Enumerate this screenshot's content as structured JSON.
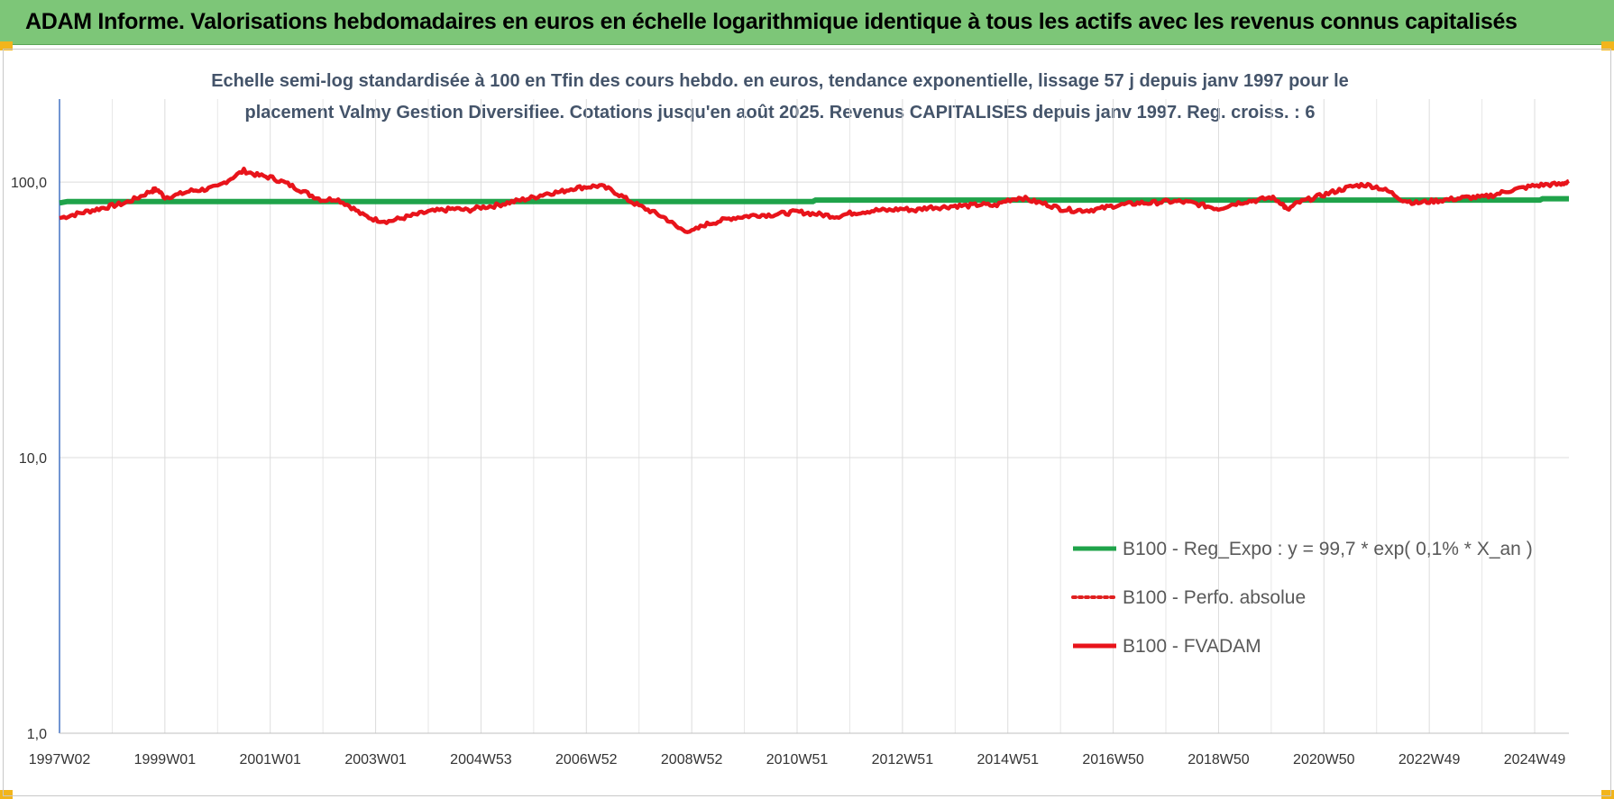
{
  "banner": {
    "title": "ADAM Informe. Valorisations hebdomadaires en euros en échelle logarithmique identique à tous les actifs avec les revenus connus capitalisés"
  },
  "chart_data": {
    "type": "line",
    "title_lines": [
      "Echelle semi-log standardisée à 100 en Tfin des cours hebdo. en euros, tendance exponentielle, lissage 57 j depuis janv 1997 pour le",
      "placement Valmy Gestion Diversifiee. Cotations jusqu'en août 2025. Revenus CAPITALISES depuis janv 1997. Reg. croiss. : 6"
    ],
    "y_scale": "log",
    "ylim": [
      1,
      200
    ],
    "y_ticks": [
      {
        "value": 1,
        "label": "1,0"
      },
      {
        "value": 10,
        "label": "10,0"
      },
      {
        "value": 100,
        "label": "100,0"
      }
    ],
    "xlim": [
      1997.0,
      2025.65
    ],
    "x_ticks": [
      {
        "value": 1997.0,
        "label": "1997W02"
      },
      {
        "value": 1999.0,
        "label": "1999W01"
      },
      {
        "value": 2001.0,
        "label": "2001W01"
      },
      {
        "value": 2003.0,
        "label": "2003W01"
      },
      {
        "value": 2005.0,
        "label": "2004W53"
      },
      {
        "value": 2007.0,
        "label": "2006W52"
      },
      {
        "value": 2009.0,
        "label": "2008W52"
      },
      {
        "value": 2011.0,
        "label": "2010W51"
      },
      {
        "value": 2013.0,
        "label": "2012W51"
      },
      {
        "value": 2015.0,
        "label": "2014W51"
      },
      {
        "value": 2017.0,
        "label": "2016W50"
      },
      {
        "value": 2019.0,
        "label": "2018W50"
      },
      {
        "value": 2021.0,
        "label": "2020W50"
      },
      {
        "value": 2023.0,
        "label": "2022W49"
      },
      {
        "value": 2025.0,
        "label": "2024W49"
      }
    ],
    "grid": "vertical",
    "legend_position": "bottom-right",
    "series": [
      {
        "name": "B100 - Reg_Expo : y = 99,7 * exp( 0,1% *  X_an )",
        "color": "#1fa34a",
        "style": "solid",
        "x": [
          1997.0,
          1997.15,
          2011.3,
          2011.35,
          2025.1,
          2025.15,
          2025.65
        ],
        "values": [
          84.0,
          85.0,
          85.0,
          86.0,
          86.0,
          87.0,
          87.0
        ]
      },
      {
        "name": "B100 - Perfo. absolue",
        "color": "#e02020",
        "style": "dotted",
        "x": [],
        "values": []
      },
      {
        "name": "B100 - FVADAM",
        "color": "#e8141b",
        "style": "solid",
        "x": [
          1997.0,
          1997.25,
          1997.5,
          1997.75,
          1998.0,
          1998.25,
          1998.5,
          1998.75,
          1998.85,
          1999.0,
          1999.25,
          1999.5,
          1999.75,
          2000.0,
          2000.25,
          2000.5,
          2000.75,
          2001.0,
          2001.25,
          2001.5,
          2001.75,
          2002.0,
          2002.25,
          2002.5,
          2002.75,
          2003.0,
          2003.25,
          2003.5,
          2003.75,
          2004.0,
          2004.25,
          2004.5,
          2004.75,
          2005.0,
          2005.25,
          2005.5,
          2005.75,
          2006.0,
          2006.25,
          2006.5,
          2006.75,
          2007.0,
          2007.25,
          2007.5,
          2007.75,
          2008.0,
          2008.25,
          2008.5,
          2008.75,
          2009.0,
          2009.25,
          2009.5,
          2009.75,
          2010.0,
          2010.25,
          2010.5,
          2010.75,
          2011.0,
          2011.25,
          2011.5,
          2011.75,
          2012.0,
          2012.25,
          2012.5,
          2012.75,
          2013.0,
          2013.25,
          2013.5,
          2013.75,
          2014.0,
          2014.25,
          2014.5,
          2014.75,
          2015.0,
          2015.25,
          2015.5,
          2015.75,
          2016.0,
          2016.25,
          2016.5,
          2016.75,
          2017.0,
          2017.25,
          2017.5,
          2017.75,
          2018.0,
          2018.25,
          2018.5,
          2018.75,
          2019.0,
          2019.25,
          2019.5,
          2019.75,
          2020.0,
          2020.2,
          2020.3,
          2020.5,
          2020.75,
          2021.0,
          2021.25,
          2021.5,
          2021.75,
          2022.0,
          2022.25,
          2022.5,
          2022.75,
          2023.0,
          2023.25,
          2023.5,
          2023.75,
          2024.0,
          2024.25,
          2024.5,
          2024.75,
          2025.0,
          2025.25,
          2025.5,
          2025.65
        ],
        "values": [
          74,
          76,
          78,
          80,
          82,
          84,
          88,
          93,
          94,
          88,
          90,
          93,
          94,
          96,
          103,
          110,
          106,
          104,
          100,
          95,
          90,
          86,
          87,
          82,
          76,
          73,
          72,
          74,
          76,
          78,
          79,
          80,
          79,
          81,
          82,
          84,
          86,
          88,
          91,
          92,
          95,
          96,
          97,
          93,
          87,
          82,
          78,
          74,
          68,
          66,
          70,
          72,
          74,
          75,
          76,
          76,
          77,
          78,
          77,
          76,
          75,
          77,
          78,
          79,
          79,
          80,
          79,
          81,
          81,
          82,
          82,
          83,
          82,
          86,
          88,
          85,
          83,
          80,
          79,
          79,
          80,
          82,
          83,
          84,
          84,
          85,
          85,
          84,
          82,
          80,
          83,
          85,
          86,
          88,
          84,
          79,
          84,
          87,
          90,
          93,
          96,
          98,
          96,
          92,
          86,
          84,
          85,
          86,
          87,
          88,
          88,
          90,
          93,
          95,
          97,
          98,
          98,
          101
        ]
      }
    ]
  }
}
